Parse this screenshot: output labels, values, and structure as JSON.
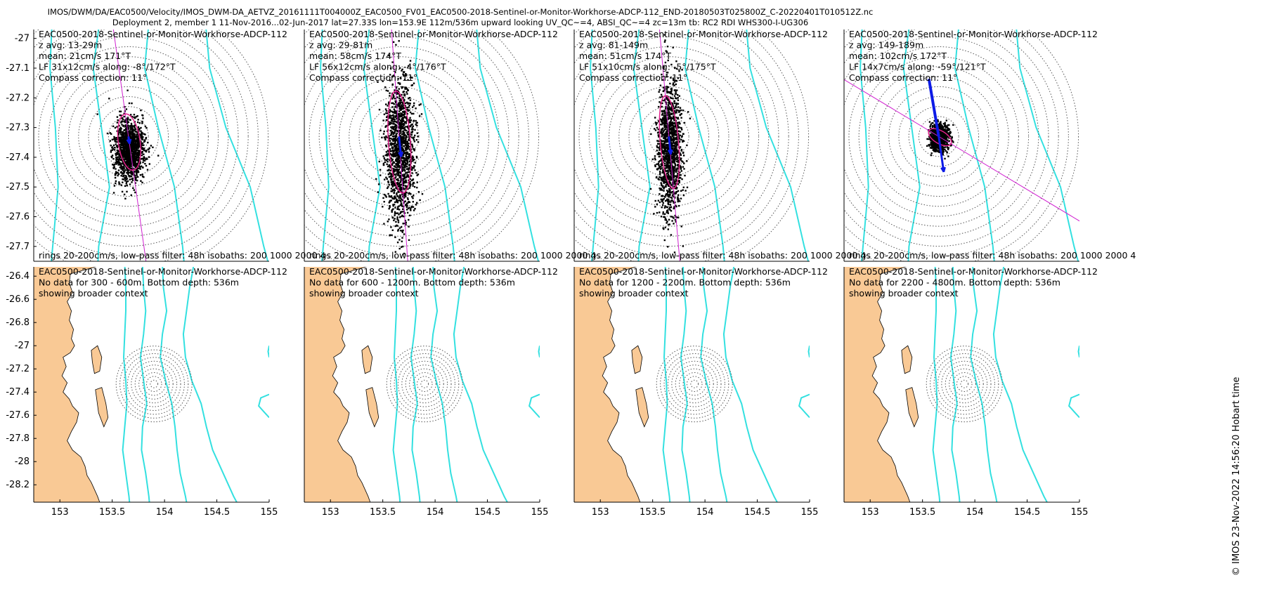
{
  "header": {
    "line1": "IMOS/DWM/DA/EAC0500/Velocity/IMOS_DWM-DA_AETVZ_20161111T004000Z_EAC0500_FV01_EAC0500-2018-Sentinel-or-Monitor-Workhorse-ADCP-112_END-20180503T025800Z_C-20220401T010512Z.nc",
    "line2": "Deployment 2, member 1 11-Nov-2016...02-Jun-2017 lat=27.33S lon=153.9E 112m/536m upward looking UV_QC~=4, ABSI_QC~=4 zc=13m tb: RC2 RDI WHS300-I-UG306"
  },
  "credit": "© IMOS 23-Nov-2022 14:56:20 Hobart time",
  "colors": {
    "land": "#f9c995",
    "isobath": "#33e0e0",
    "ellipse": "#e0208a",
    "mean_arrow": "#0d1be6",
    "lf_axis": "#d020d0",
    "rings": "#555555",
    "scatter": "#000000"
  },
  "chart_data": [
    {
      "type": "map",
      "panel": "top-1",
      "ylim": [
        -27.75,
        -26.97
      ],
      "yticks": [
        "-27",
        "-27.1",
        "-27.2",
        "-27.3",
        "-27.4",
        "-27.5",
        "-27.6",
        "-27.7"
      ],
      "xticks": [],
      "labels": [
        "EAC0500-2018-Sentinel-or-Monitor-Workhorse-ADCP-112",
        "z avg: 13-29m",
        "mean: 21cm/s 171°T",
        "LF 31x12cm/s along: -8°/172°T",
        "Compass correction: 11°"
      ],
      "footer": "rings 20-200cm/s, low-pass filter: 48h isobaths: 200 1000 2000 4",
      "mean_speed_cms": 21,
      "mean_dir_degT": 171,
      "lf_major_cms": 31,
      "lf_minor_cms": 12,
      "lf_along_deg": [
        -8,
        172
      ],
      "rings_cms": [
        20,
        200
      ],
      "scatter_spread_deg": [
        0.05,
        0.09
      ]
    },
    {
      "type": "map",
      "panel": "top-2",
      "ylim": [
        -27.75,
        -26.97
      ],
      "yticks": [],
      "xticks": [],
      "labels": [
        "EAC0500-2018-Sentinel-or-Monitor-Workhorse-ADCP-112",
        "z avg: 29-81m",
        "mean: 58cm/s 174°T",
        "LF 56x12cm/s along: -4°/176°T",
        "Compass correction: 11°"
      ],
      "footer": "rings 20-200cm/s, low-pass filter: 48h isobaths: 200 1000 2000 4",
      "mean_speed_cms": 58,
      "mean_dir_degT": 174,
      "lf_major_cms": 56,
      "lf_minor_cms": 12,
      "lf_along_deg": [
        -4,
        176
      ],
      "rings_cms": [
        20,
        200
      ],
      "scatter_spread_deg": [
        0.05,
        0.22
      ]
    },
    {
      "type": "map",
      "panel": "top-3",
      "ylim": [
        -27.75,
        -26.97
      ],
      "yticks": [],
      "xticks": [],
      "labels": [
        "EAC0500-2018-Sentinel-or-Monitor-Workhorse-ADCP-112",
        "z avg: 81-149m",
        "mean: 51cm/s 174°T",
        "LF 51x10cm/s along: -5°/175°T",
        "Compass correction: 11°"
      ],
      "footer": "rings 20-200cm/s, low-pass filter: 48h isobaths: 200 1000 2000 4",
      "mean_speed_cms": 51,
      "mean_dir_degT": 174,
      "lf_major_cms": 51,
      "lf_minor_cms": 10,
      "lf_along_deg": [
        -5,
        175
      ],
      "rings_cms": [
        20,
        200
      ],
      "scatter_spread_deg": [
        0.04,
        0.2
      ]
    },
    {
      "type": "map",
      "panel": "top-4",
      "ylim": [
        -27.75,
        -26.97
      ],
      "yticks": [],
      "xticks": [],
      "labels": [
        "EAC0500-2018-Sentinel-or-Monitor-Workhorse-ADCP-112",
        "z avg: 149-189m",
        "mean: 102cm/s 172°T",
        "LF 14x7cm/s along: -59°/121°T",
        "Compass correction: 11°"
      ],
      "footer": "rings 20-200cm/s, low-pass filter: 48h isobaths: 200 1000 2000 4",
      "mean_speed_cms": 102,
      "mean_dir_degT": 172,
      "lf_major_cms": 14,
      "lf_minor_cms": 7,
      "lf_along_deg": [
        -59,
        121
      ],
      "rings_cms": [
        20,
        200
      ],
      "scatter_spread_deg": [
        0.03,
        0.04
      ]
    },
    {
      "type": "map",
      "panel": "bottom-1",
      "xlim": [
        152.75,
        155.0
      ],
      "ylim": [
        -28.35,
        -26.32
      ],
      "yticks": [
        "-26.4",
        "-26.6",
        "-26.8",
        "-27",
        "-27.2",
        "-27.4",
        "-27.6",
        "-27.8",
        "-28",
        "-28.2"
      ],
      "xticks": [
        "153",
        "153.5",
        "154",
        "154.5",
        "155"
      ],
      "labels": [
        "EAC0500-2018-Sentinel-or-Monitor-Workhorse-ADCP-112",
        "No data for 300 - 600m. Bottom depth: 536m",
        "showing broader context"
      ]
    },
    {
      "type": "map",
      "panel": "bottom-2",
      "xlim": [
        152.75,
        155.0
      ],
      "ylim": [
        -28.35,
        -26.32
      ],
      "yticks": [],
      "xticks": [
        "153",
        "153.5",
        "154",
        "154.5",
        "155"
      ],
      "labels": [
        "EAC0500-2018-Sentinel-or-Monitor-Workhorse-ADCP-112",
        "No data for 600 - 1200m. Bottom depth: 536m",
        "showing broader context"
      ]
    },
    {
      "type": "map",
      "panel": "bottom-3",
      "xlim": [
        152.75,
        155.0
      ],
      "ylim": [
        -28.35,
        -26.32
      ],
      "yticks": [],
      "xticks": [
        "153",
        "153.5",
        "154",
        "154.5",
        "155"
      ],
      "labels": [
        "EAC0500-2018-Sentinel-or-Monitor-Workhorse-ADCP-112",
        "No data for 1200 - 2200m. Bottom depth: 536m",
        "showing broader context"
      ]
    },
    {
      "type": "map",
      "panel": "bottom-4",
      "xlim": [
        152.75,
        155.0
      ],
      "ylim": [
        -28.35,
        -26.32
      ],
      "yticks": [],
      "xticks": [
        "153",
        "153.5",
        "154",
        "154.5",
        "155"
      ],
      "labels": [
        "EAC0500-2018-Sentinel-or-Monitor-Workhorse-ADCP-112",
        "No data for 2200 - 4800m. Bottom depth: 536m",
        "showing broader context"
      ]
    }
  ]
}
